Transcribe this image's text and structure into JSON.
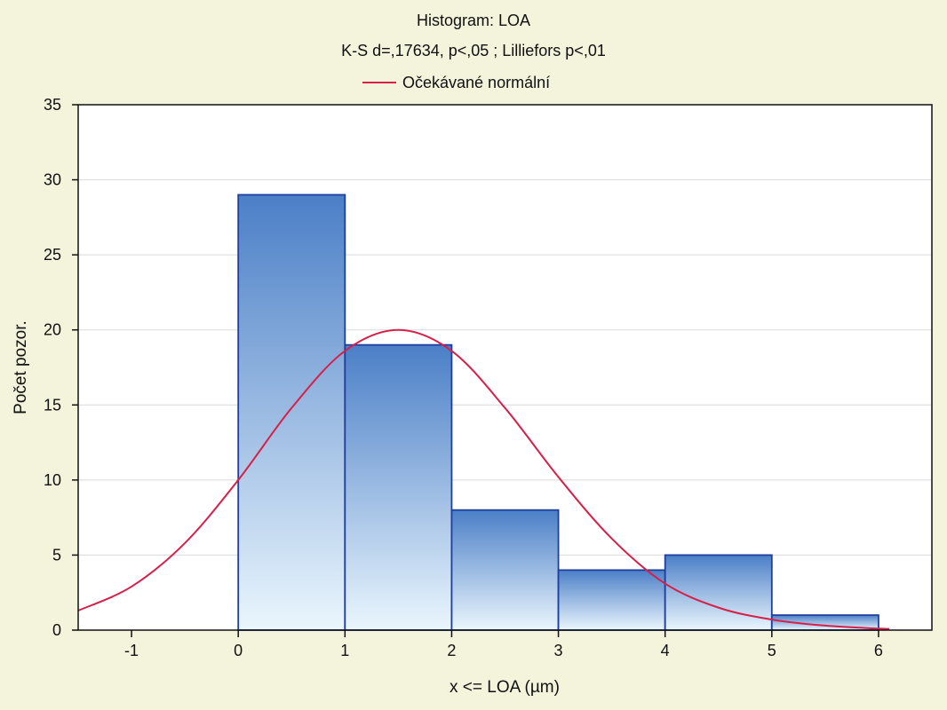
{
  "chart_data": {
    "type": "bar",
    "title": "Histogram: LOA",
    "subtitle": "K-S d=,17634, p<,05 ; Lilliefors p<,01",
    "xlabel": "x <= LOA (µm)",
    "ylabel": "Počet pozor.",
    "xlim": [
      -1.5,
      6.5
    ],
    "ylim": [
      0,
      35
    ],
    "x_ticks": [
      -1,
      0,
      1,
      2,
      3,
      4,
      5,
      6
    ],
    "x_tick_labels": [
      "-1",
      "0",
      "1",
      "2",
      "3",
      "4",
      "5",
      "6"
    ],
    "y_ticks": [
      0,
      5,
      10,
      15,
      20,
      25,
      30,
      35
    ],
    "y_tick_labels": [
      "0",
      "5",
      "10",
      "15",
      "20",
      "25",
      "30",
      "35"
    ],
    "bins": [
      {
        "start": 0,
        "end": 1,
        "value": 29
      },
      {
        "start": 1,
        "end": 2,
        "value": 19
      },
      {
        "start": 2,
        "end": 3,
        "value": 8
      },
      {
        "start": 3,
        "end": 4,
        "value": 4
      },
      {
        "start": 4,
        "end": 5,
        "value": 5
      },
      {
        "start": 5,
        "end": 6,
        "value": 1
      }
    ],
    "series": [
      {
        "name": "Očekávané normální",
        "type": "line",
        "x": [
          -1.5,
          -1,
          -0.5,
          0,
          0.5,
          1,
          1.5,
          2,
          2.5,
          3,
          3.5,
          4,
          4.5,
          5,
          5.5,
          6,
          6.1
        ],
        "y": [
          1.3,
          2.9,
          5.8,
          10.0,
          14.8,
          18.6,
          20.0,
          18.6,
          14.8,
          10.2,
          6.1,
          3.1,
          1.5,
          0.7,
          0.3,
          0.1,
          0.08
        ],
        "color": "#d6204a"
      }
    ],
    "grid": true,
    "legend": "top-center",
    "colors": {
      "background": "#f4f3dc",
      "plot_background": "#ffffff",
      "bar_top": "#4b7fc7",
      "bar_bottom": "#eaf6fd",
      "bar_stroke": "#1e3f9d",
      "grid": "#d9d9d9",
      "curve": "#d6204a"
    }
  }
}
